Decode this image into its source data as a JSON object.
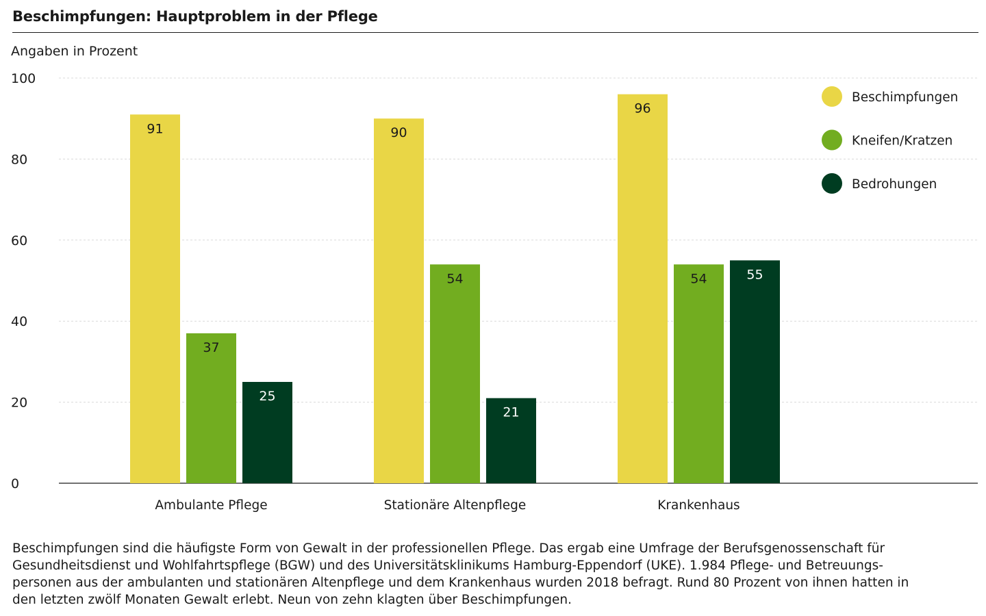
{
  "chart_data": {
    "type": "bar",
    "title": "Beschimpfungen: Hauptproblem in der Pflege",
    "ylabel": "Angaben in Prozent",
    "xlabel": "",
    "ylim": [
      0,
      100
    ],
    "yticks": [
      0,
      20,
      40,
      60,
      80,
      100
    ],
    "grid": true,
    "legend_position": "top-right",
    "categories": [
      "Ambulante Pflege",
      "Stationäre Altenpflege",
      "Krankenhaus"
    ],
    "series": [
      {
        "name": "Beschimpfungen",
        "color": "#e9d646",
        "label_color": "#1a1a1a",
        "values": [
          91,
          90,
          96
        ]
      },
      {
        "name": "Kneifen/Kratzen",
        "color": "#72ad20",
        "label_color": "#1a1a1a",
        "values": [
          37,
          54,
          54
        ]
      },
      {
        "name": "Bedrohungen",
        "color": "#003c21",
        "label_color": "#ffffff",
        "values": [
          25,
          21,
          55
        ]
      }
    ]
  },
  "description": "Beschimpfungen sind die häufigste Form von Gewalt in der professionellen Pflege. Das ergab eine Umfrage der Berufsgenossenschaft für Gesundheitsdienst und Wohlfahrtspflege (BGW) und des Universitätsklinikums Hamburg-Eppendorf (UKE). 1.984 Pflege- und Betreuungs-personen aus der ambulanten und stationären Altenpflege und dem Krankenhaus wurden 2018 befragt. Rund 80 Prozent von ihnen hatten in den letzten zwölf Monaten Gewalt erlebt. Neun von zehn klagten über Beschimpfungen.",
  "description_lines": [
    "Beschimpfungen sind die häufigste Form von Gewalt in der professionellen Pflege. Das ergab eine Umfrage der Berufsgenossenschaft für",
    "Gesundheitsdienst und Wohlfahrtspflege (BGW) und des Universitätsklinikums Hamburg-Eppendorf (UKE). 1.984 Pflege- und Betreuungs-",
    "personen aus der ambulanten und stationären Altenpflege und dem Krankenhaus wurden 2018 befragt. Rund 80 Prozent von ihnen hatten in",
    "den letzten zwölf Monaten Gewalt erlebt. Neun von zehn klagten über Beschimpfungen."
  ]
}
